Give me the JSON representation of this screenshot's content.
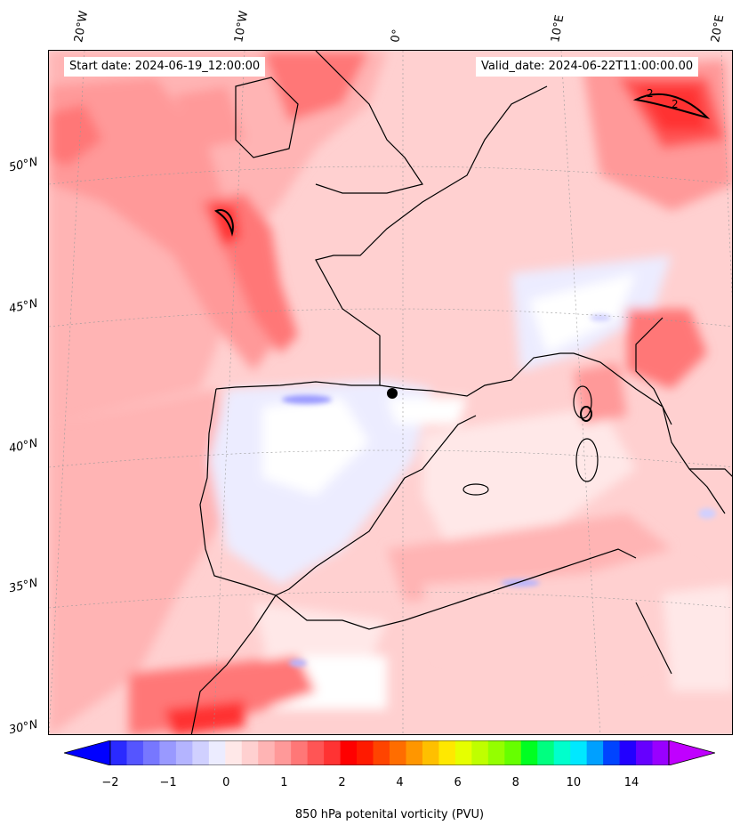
{
  "chart_data": {
    "type": "heatmap",
    "title": "850 hPa potenital vorticity (PVU)",
    "start_date_label": "Start date: 2024-06-19_12:00:00",
    "valid_date_label": "Valid_date: 2024-06-22T11:00:00.00",
    "longitude_labels": [
      "20°W",
      "10°W",
      "0°",
      "10°E",
      "20°E"
    ],
    "latitude_labels": [
      "50°N",
      "45°N",
      "40°N",
      "35°N",
      "30°N"
    ],
    "colorbar": {
      "label": "850 hPa potenital vorticity (PVU)",
      "tick_labels": [
        "−2",
        "−1",
        "0",
        "1",
        "2",
        "4",
        "6",
        "8",
        "10",
        "14"
      ],
      "colors": [
        "#0000ff",
        "#2a2aff",
        "#5555ff",
        "#7777ff",
        "#9999ff",
        "#b4b4ff",
        "#d0d0ff",
        "#ececff",
        "#ffe8e8",
        "#ffd0d0",
        "#ffb4b4",
        "#ff9999",
        "#ff7777",
        "#ff5555",
        "#ff3333",
        "#ff0000",
        "#ff1a00",
        "#ff4400",
        "#ff6d00",
        "#ff9600",
        "#ffbf00",
        "#ffe800",
        "#e6ff00",
        "#bfff00",
        "#94ff00",
        "#66ff00",
        "#00ff22",
        "#00ff80",
        "#00ffcc",
        "#00e8ff",
        "#00a0ff",
        "#0044ff",
        "#2200ff",
        "#6600ff",
        "#9900ff",
        "#c000ff"
      ],
      "extend": "both"
    },
    "contour_label": "2",
    "field_range": [
      -2,
      14
    ]
  }
}
